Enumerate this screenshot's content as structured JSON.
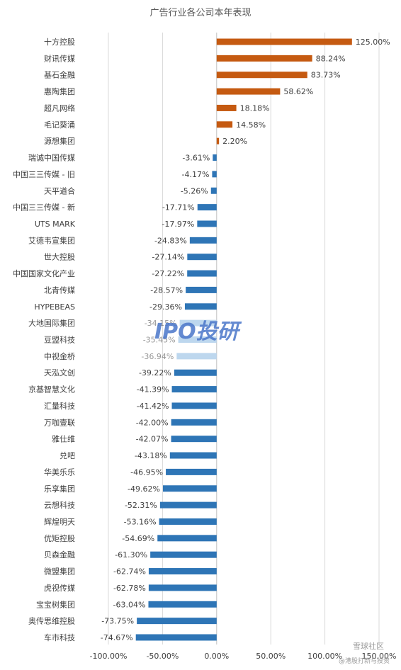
{
  "chart_data": {
    "type": "bar",
    "orientation": "horizontal",
    "title": "广告行业各公司本年表现",
    "categories": [
      "十方控股",
      "财讯传媒",
      "基石金融",
      "惠陶集团",
      "超凡网络",
      "毛记葵涌",
      "源想集团",
      "瑞诚中国传媒",
      "中国三三传媒 - 旧",
      "天平道合",
      "中国三三传媒 - 新",
      "UTS MARK",
      "艾德韦宣集团",
      "世大控股",
      "中国国家文化产业",
      "北青传媒",
      "HYPEBEAS",
      "大地国际集团",
      "豆盟科技",
      "中视金桥",
      "天泓文创",
      "京基智慧文化",
      "汇量科技",
      "万咖壹联",
      "雅仕维",
      "兑吧",
      "华美乐乐",
      "乐享集团",
      "云想科技",
      "辉煌明天",
      "优矩控股",
      "贝森金融",
      "微盟集团",
      "虎视传媒",
      "宝宝树集团",
      "奥传思维控股",
      "车市科技"
    ],
    "values": [
      125.0,
      88.24,
      83.73,
      58.62,
      18.18,
      14.58,
      2.2,
      -3.61,
      -4.17,
      -5.26,
      -17.71,
      -17.97,
      -24.83,
      -27.14,
      -27.22,
      -28.57,
      -29.36,
      -34.15,
      -35.45,
      -36.94,
      -39.22,
      -41.39,
      -41.42,
      -42.0,
      -42.07,
      -43.18,
      -46.95,
      -49.62,
      -52.31,
      -53.16,
      -54.69,
      -61.3,
      -62.74,
      -62.78,
      -63.04,
      -73.75,
      -74.67
    ],
    "value_labels": [
      "125.00%",
      "88.24%",
      "83.73%",
      "58.62%",
      "18.18%",
      "14.58%",
      "2.20%",
      "-3.61%",
      "-4.17%",
      "-5.26%",
      "-17.71%",
      "-17.97%",
      "-24.83%",
      "-27.14%",
      "-27.22%",
      "-28.57%",
      "-29.36%",
      "-34.15%",
      "-35.45%",
      "-36.94%",
      "-39.22%",
      "-41.39%",
      "-41.42%",
      "-42.00%",
      "-42.07%",
      "-43.18%",
      "-46.95%",
      "-49.62%",
      "-52.31%",
      "-53.16%",
      "-54.69%",
      "-61.30%",
      "-62.74%",
      "-62.78%",
      "-63.04%",
      "-73.75%",
      "-74.67%"
    ],
    "xlim": [
      -100,
      150
    ],
    "x_ticks": [
      -100,
      -50,
      0,
      50,
      100,
      150
    ],
    "x_tick_labels": [
      "-100.00%",
      "-50.00%",
      "0.00%",
      "50.00%",
      "100.00%",
      "150.00%"
    ],
    "grid": true,
    "colors": {
      "positive": "#c55a11",
      "negative": "#2e75b6",
      "negative_faded": "#bdd7ee",
      "grid": "#d9d9d9"
    }
  },
  "watermark": {
    "text": "IPO投研"
  },
  "corner_watermark": {
    "text": "雪球社区",
    "subtext": "@港股打新与投资"
  }
}
